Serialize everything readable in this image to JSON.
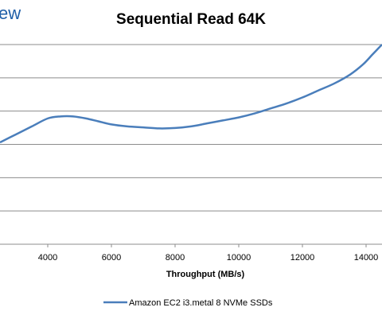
{
  "brand": "ew",
  "chart_data": {
    "type": "line",
    "title": "Sequential Read 64K",
    "xlabel": "Throughput (MB/s)",
    "ylabel": "",
    "xlim": [
      2500,
      14500
    ],
    "x_ticks": [
      4000,
      6000,
      8000,
      10000,
      12000,
      14000
    ],
    "grid": true,
    "legend_position": "bottom",
    "series": [
      {
        "name": "Amazon EC2 i3.metal 8 NVMe SSDs",
        "color": "#4a7ebb",
        "x": [
          2500,
          3000,
          3500,
          4000,
          4400,
          4800,
          5200,
          5600,
          6000,
          6500,
          7000,
          7500,
          8000,
          8500,
          9000,
          9500,
          10000,
          10500,
          11000,
          11500,
          12000,
          12500,
          13000,
          13500,
          13900,
          14200,
          14500
        ],
        "y": [
          0.49,
          0.45,
          0.41,
          0.37,
          0.36,
          0.36,
          0.37,
          0.385,
          0.4,
          0.41,
          0.415,
          0.42,
          0.418,
          0.41,
          0.395,
          0.38,
          0.365,
          0.345,
          0.32,
          0.295,
          0.265,
          0.23,
          0.195,
          0.15,
          0.1,
          0.05,
          0.0
        ]
      }
    ]
  }
}
